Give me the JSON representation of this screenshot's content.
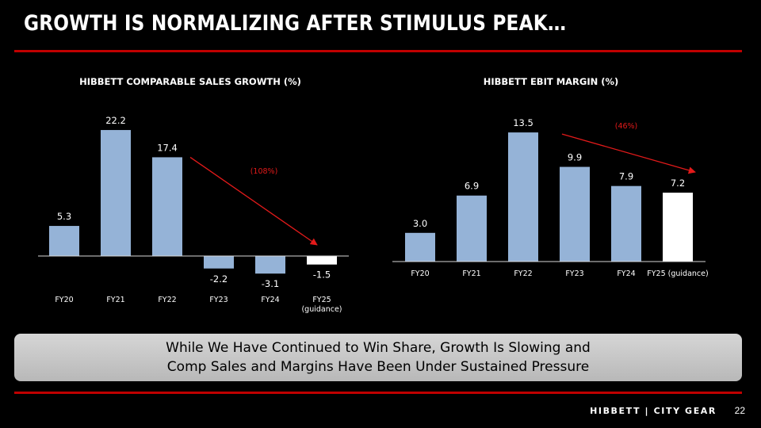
{
  "slide": {
    "title": "GROWTH IS NORMALIZING AFTER STIMULUS PEAK…",
    "callout": {
      "line1": "While We Have Continued to Win Share, Growth Is Slowing and",
      "line2": "Comp Sales and Margins Have Been Under Sustained Pressure"
    },
    "brand": "HIBBETT | CITY GEAR",
    "page_number": "22"
  },
  "colors": {
    "background": "#000000",
    "accent_red": "#c00000",
    "bar_blue": "#95b3d7",
    "highlight_bar": "#ffffff",
    "annotation_red": "#e31a1a"
  },
  "chart_data": [
    {
      "type": "bar",
      "title": "HIBBETT COMPARABLE SALES GROWTH (%)",
      "categories": [
        "FY20",
        "FY21",
        "FY22",
        "FY23",
        "FY24",
        "FY25"
      ],
      "category_sublabels": [
        "",
        "",
        "",
        "",
        "",
        "(guidance)"
      ],
      "values": [
        5.3,
        22.2,
        17.4,
        -2.2,
        -3.1,
        -1.5
      ],
      "value_labels": [
        "5.3",
        "22.2",
        "17.4",
        "-2.2",
        "-3.1",
        "-1.5"
      ],
      "highlight_index": 5,
      "annotation": {
        "text": "(108%)",
        "from_index": 2,
        "to_index": 5
      },
      "ylim": [
        -3.5,
        25
      ],
      "grid": false,
      "legend": "none"
    },
    {
      "type": "bar",
      "title": "HIBBETT EBIT MARGIN (%)",
      "categories": [
        "FY20",
        "FY21",
        "FY22",
        "FY23",
        "FY24",
        "FY25 (guidance)"
      ],
      "category_sublabels": [
        "",
        "",
        "",
        "",
        "",
        ""
      ],
      "values": [
        3.0,
        6.9,
        13.5,
        9.9,
        7.9,
        7.2
      ],
      "value_labels": [
        "3.0",
        "6.9",
        "13.5",
        "9.9",
        "7.9",
        "7.2"
      ],
      "highlight_index": 5,
      "annotation": {
        "text": "(46%)",
        "from_index": 2,
        "to_index": 5
      },
      "ylim": [
        0,
        15
      ],
      "grid": false,
      "legend": "none"
    }
  ]
}
